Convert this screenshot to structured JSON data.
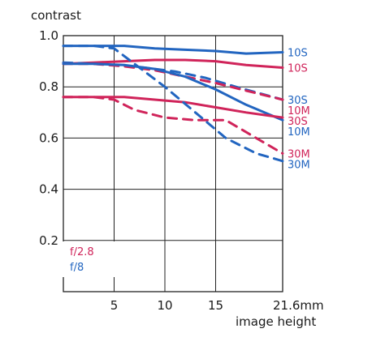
{
  "chart_data": {
    "type": "line",
    "title": "",
    "ylabel": "contrast",
    "xlabel": "image height",
    "xlim": [
      0,
      21.6
    ],
    "ylim": [
      0,
      1.0
    ],
    "x_ticks": [
      5,
      10,
      15,
      21.6
    ],
    "x_tick_labels": [
      "5",
      "10",
      "15",
      "21.6mm"
    ],
    "y_ticks": [
      0.2,
      0.4,
      0.6,
      0.8,
      1.0
    ],
    "y_tick_labels": [
      "0.2",
      "0.4",
      "0.6",
      "0.8",
      "1.0"
    ],
    "grid": true,
    "colors": {
      "f28": "#d0245a",
      "f8": "#2265c0"
    },
    "legend": [
      {
        "label": "f/2.8",
        "color": "#d0245a"
      },
      {
        "label": "f/8",
        "color": "#2265c0"
      }
    ],
    "series": [
      {
        "label": "10S",
        "aperture": "f/8",
        "style": "solid",
        "x": [
          0,
          3,
          6,
          9,
          12,
          15,
          18,
          21.6
        ],
        "y": [
          0.96,
          0.96,
          0.96,
          0.95,
          0.945,
          0.94,
          0.93,
          0.935
        ]
      },
      {
        "label": "10S",
        "aperture": "f/2.8",
        "style": "solid",
        "x": [
          0,
          3,
          6,
          9,
          12,
          15,
          18,
          21.6
        ],
        "y": [
          0.89,
          0.895,
          0.9,
          0.905,
          0.905,
          0.9,
          0.885,
          0.875
        ]
      },
      {
        "label": "30S",
        "aperture": "f/8",
        "style": "dashed",
        "x": [
          0,
          3,
          5,
          8,
          11,
          14,
          17,
          21.6
        ],
        "y": [
          0.895,
          0.89,
          0.885,
          0.875,
          0.86,
          0.835,
          0.8,
          0.75
        ]
      },
      {
        "label": "10M",
        "aperture": "f/2.8",
        "style": "dashed",
        "x": [
          0,
          3,
          6,
          9,
          12,
          15,
          18,
          21.6
        ],
        "y": [
          0.89,
          0.89,
          0.88,
          0.865,
          0.84,
          0.815,
          0.785,
          0.75
        ]
      },
      {
        "label": "10M",
        "aperture": "f/8",
        "style": "solid",
        "x": [
          0,
          3,
          6,
          9,
          12,
          15,
          18,
          21.6
        ],
        "y": [
          0.89,
          0.89,
          0.885,
          0.87,
          0.84,
          0.79,
          0.73,
          0.67
        ]
      },
      {
        "label": "30S",
        "aperture": "f/2.8",
        "style": "solid",
        "x": [
          0,
          3,
          6,
          9,
          12,
          15,
          18,
          21.6
        ],
        "y": [
          0.76,
          0.76,
          0.76,
          0.75,
          0.74,
          0.72,
          0.7,
          0.68
        ]
      },
      {
        "label": "30M",
        "aperture": "f/2.8",
        "style": "dashed",
        "x": [
          0,
          3,
          5,
          7,
          10,
          13,
          16,
          19,
          21.6
        ],
        "y": [
          0.76,
          0.76,
          0.75,
          0.71,
          0.68,
          0.67,
          0.67,
          0.6,
          0.54
        ]
      },
      {
        "label": "30M",
        "aperture": "f/8",
        "style": "dashed",
        "x": [
          0,
          3,
          5,
          7,
          10,
          13,
          16,
          19,
          21.6
        ],
        "y": [
          0.96,
          0.96,
          0.95,
          0.89,
          0.8,
          0.7,
          0.6,
          0.54,
          0.51
        ]
      }
    ]
  }
}
